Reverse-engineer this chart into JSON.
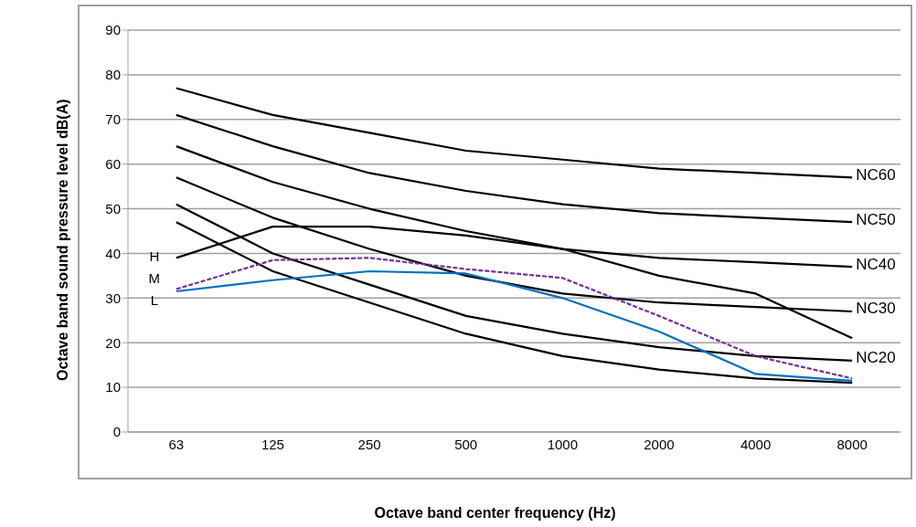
{
  "chart_data": {
    "type": "line",
    "xlabel": "Octave band center frequency (Hz)",
    "ylabel": "Octave band sound pressure level dB(A)",
    "categories": [
      "63",
      "125",
      "250",
      "500",
      "1000",
      "2000",
      "4000",
      "8000"
    ],
    "series": [
      {
        "name": "NC60",
        "color": "#000000",
        "values": [
          77,
          71,
          67,
          63,
          61,
          59,
          58,
          57
        ]
      },
      {
        "name": "NC50",
        "color": "#000000",
        "values": [
          71,
          64,
          58,
          54,
          51,
          49,
          48,
          47
        ]
      },
      {
        "name": "NC40",
        "color": "#000000",
        "values": [
          64,
          56,
          50,
          45,
          41,
          39,
          38,
          37
        ]
      },
      {
        "name": "NC30",
        "color": "#000000",
        "values": [
          57,
          48,
          41,
          35,
          31,
          29,
          28,
          27
        ]
      },
      {
        "name": "NC20",
        "color": "#000000",
        "values": [
          51,
          40,
          33,
          26,
          22,
          19,
          17,
          16
        ]
      },
      {
        "color": "#000000",
        "values": [
          47,
          36,
          29,
          22,
          17,
          14,
          12,
          11
        ]
      },
      {
        "name": "H",
        "color": "#000000",
        "values": [
          39,
          46,
          46,
          44,
          41,
          35,
          31,
          21
        ]
      },
      {
        "name": "M",
        "color": "#7030a0",
        "line_style": "dashed",
        "values": [
          32,
          38.5,
          39,
          36.5,
          34.5,
          26,
          17,
          12
        ]
      },
      {
        "name": "L",
        "color": "#0070c0",
        "values": [
          31.5,
          34,
          36,
          35.5,
          30,
          22.5,
          13,
          11.5
        ]
      }
    ],
    "ylim": [
      0,
      90
    ],
    "yticks": [
      0,
      10,
      20,
      30,
      40,
      50,
      60,
      70,
      80,
      90
    ],
    "grid": "y",
    "legend": false,
    "marker": "none",
    "line_style": "solid"
  }
}
